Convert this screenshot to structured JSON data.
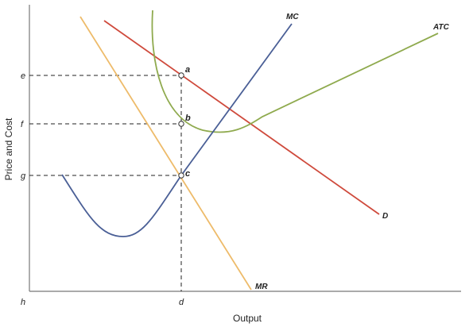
{
  "axes": {
    "y_title": "Price and Cost",
    "x_title": "Output",
    "origin_label": "h"
  },
  "ticks": {
    "e": "e",
    "f": "f",
    "g": "g",
    "d": "d"
  },
  "curves": {
    "mc": {
      "label": "MC",
      "color": "#4a5f96"
    },
    "atc": {
      "label": "ATC",
      "color": "#8faa4e"
    },
    "demand": {
      "label": "D",
      "color": "#cf4a3c"
    },
    "mr": {
      "label": "MR",
      "color": "#eebb6a"
    }
  },
  "points": {
    "a": "a",
    "b": "b",
    "c": "c"
  },
  "colors": {
    "axis": "#777777",
    "guide": "#222222"
  }
}
